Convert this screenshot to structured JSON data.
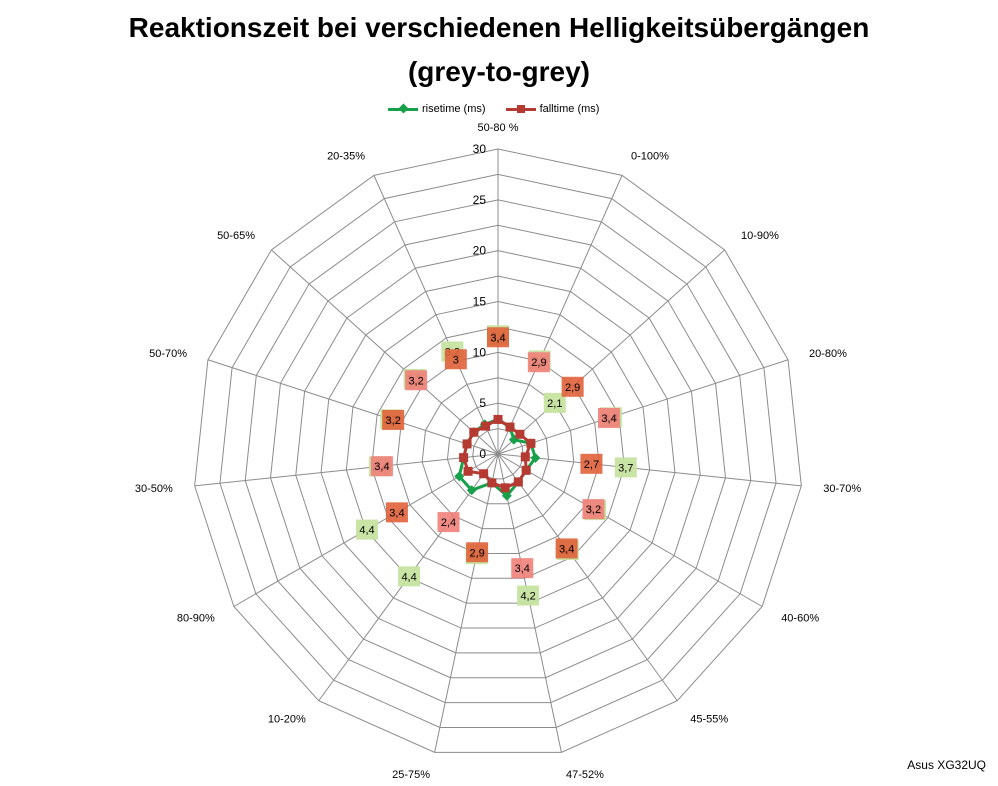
{
  "title_line1": "Reaktionszeit bei verschiedenen Helligkeitsübergängen",
  "title_line2": "(grey-to-grey)",
  "watermark": "Asus XG32UQ",
  "colors": {
    "rise": "#17a04a",
    "fall": "#b53a32",
    "rise_label": "#c6e3a0",
    "fall_label_a": "#f07f7a",
    "fall_label_b": "#e0623a",
    "grid": "#8c8c8c"
  },
  "chart_data": {
    "type": "radar",
    "title": "Reaktionszeit bei verschiedenen Helligkeitsübergängen (grey-to-grey)",
    "categories": [
      "50-80 %",
      "0-100%",
      "10-90%",
      "20-80%",
      "30-70%",
      "40-60%",
      "45-55%",
      "47-52%",
      "25-75%",
      "10-20%",
      "80-90%",
      "30-50%",
      "50-70%",
      "50-65%",
      "20-35%"
    ],
    "rlim": [
      0,
      30
    ],
    "ticks": [
      0,
      5,
      10,
      15,
      20,
      25,
      30
    ],
    "series": [
      {
        "name": "risetime (ms)",
        "values": [
          3.4,
          2.9,
          2.1,
          3.4,
          3.7,
          3.2,
          3.4,
          4.2,
          2.9,
          4.4,
          4.4,
          3.4,
          3.2,
          3.2,
          3.2
        ],
        "labels": [
          "3,4",
          "2,9",
          "2,1",
          "3,4",
          "3,7",
          "3,2",
          "3,4",
          "4,2",
          "2,9",
          "4,4",
          "4,4",
          "3,4",
          "3,2",
          "3,2",
          "3,2"
        ]
      },
      {
        "name": "falltime (ms)",
        "values": [
          3.4,
          2.9,
          2.9,
          3.4,
          2.7,
          3.2,
          3.4,
          3.4,
          2.9,
          2.4,
          3.4,
          3.4,
          3.2,
          3.2,
          3.0
        ],
        "labels": [
          "3,4",
          "2,9",
          "2,9",
          "3,4",
          "2,7",
          "3,2",
          "3,4",
          "3,4",
          "2,9",
          "2,4",
          "3,4",
          "3,4",
          "3,2",
          "3,2",
          "3"
        ]
      }
    ],
    "legend_position": "top"
  }
}
